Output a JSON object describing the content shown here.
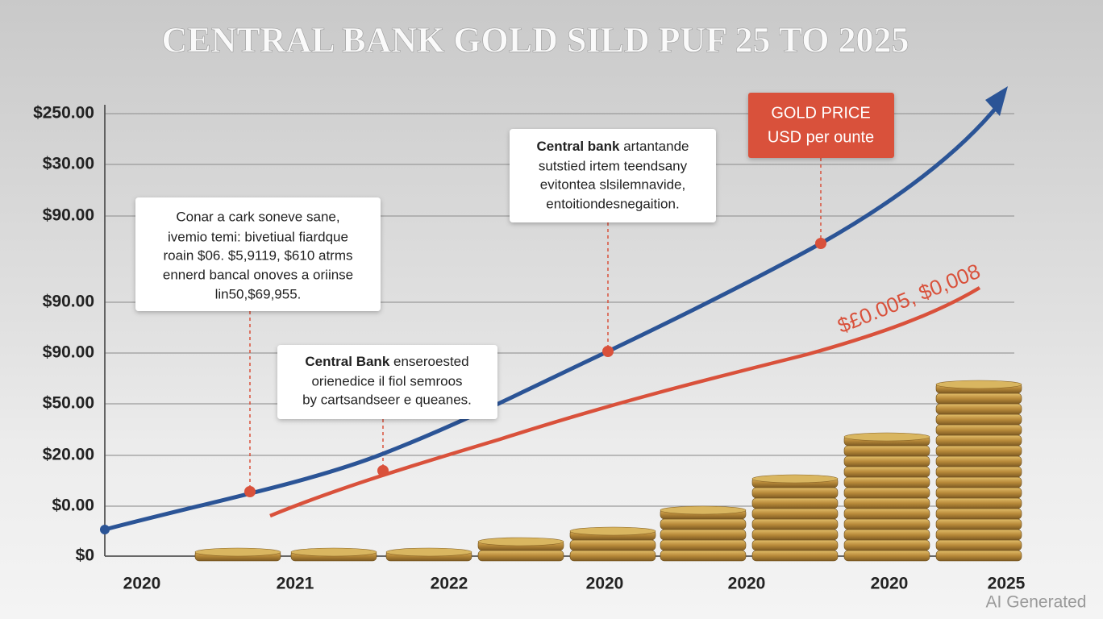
{
  "title": "CENTRAL BANK GOLD SILD PUF 25 TO 2025",
  "y_axis_labels": [
    "$250.00",
    "$30.00",
    "$90.00",
    "$90.00",
    "$90.00",
    "$50.00",
    "$20.00",
    "$0.00",
    "$0"
  ],
  "x_axis_labels": [
    "2020",
    "2021",
    "2022",
    "2020",
    "2020",
    "2020",
    "2025"
  ],
  "callouts": [
    {
      "lines": [
        "Conar a cark soneve sane,",
        "ivemio temi: bivetiual fiardque",
        "roain $06. $5,9119, $610 atrms",
        "ennerd bancal onoves a oriinse",
        "lin50,$69,955."
      ]
    },
    {
      "heading": "Central Bank",
      "lines": [
        "enseroested",
        "orienedice il fiol semroos",
        "by cartsandseer e queanes."
      ]
    },
    {
      "heading": "Central bank",
      "lines": [
        "artantande",
        "sutstied irtem teendsany",
        "evitontea slsilemnavide,",
        "entoitiondesnegaition."
      ]
    }
  ],
  "legend": {
    "title": "GOLD PRICE",
    "subtitle": "USD per ounte"
  },
  "line_label": "$£0.005, $0,008",
  "watermark": "AI Generated"
}
